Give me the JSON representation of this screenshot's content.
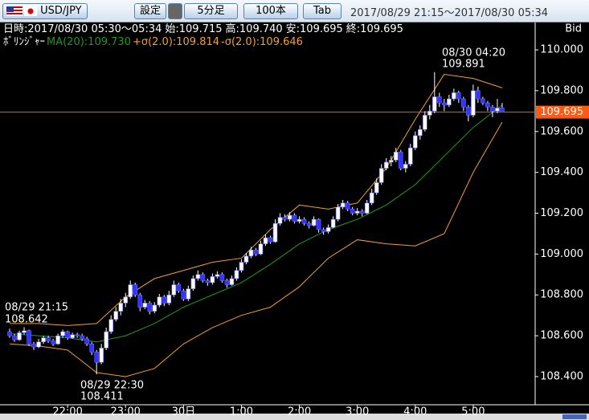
{
  "toolbar": {
    "pair": "USD/JPY",
    "buttons": [
      "設定",
      "5分足",
      "100本",
      "Tab"
    ],
    "range": "2017/08/29 21:15～2017/08/30 05:34"
  },
  "chart_data": {
    "type": "candlestick",
    "info": [
      "日時:2017/08/30 05:30～05:34",
      "始:109.715",
      "高:109.740",
      "安:109.695",
      "終:109.695"
    ],
    "indicator": "ﾎﾞﾘﾝｼﾞｬｰ",
    "axis_label": "Bid",
    "up_color": "#ffffff",
    "down_color": "#3333ff",
    "wick_color": "#ffffff",
    "ohlc": [
      [
        108.62,
        108.635,
        108.59,
        108.6
      ],
      [
        108.6,
        108.61,
        108.57,
        108.58
      ],
      [
        108.58,
        108.625,
        108.575,
        108.615
      ],
      [
        108.615,
        108.642,
        108.605,
        108.625
      ],
      [
        108.625,
        108.63,
        108.55,
        108.56
      ],
      [
        108.56,
        108.57,
        108.53,
        108.545
      ],
      [
        108.545,
        108.585,
        108.54,
        108.57
      ],
      [
        108.57,
        108.6,
        108.56,
        108.59
      ],
      [
        108.59,
        108.6,
        108.565,
        108.575
      ],
      [
        108.575,
        108.585,
        108.55,
        108.56
      ],
      [
        108.56,
        108.61,
        108.555,
        108.6
      ],
      [
        108.6,
        108.63,
        108.59,
        108.62
      ],
      [
        108.62,
        108.625,
        108.58,
        108.59
      ],
      [
        108.59,
        108.615,
        108.585,
        108.605
      ],
      [
        108.605,
        108.615,
        108.59,
        108.6
      ],
      [
        108.6,
        108.61,
        108.575,
        108.585
      ],
      [
        108.585,
        108.595,
        108.55,
        108.56
      ],
      [
        108.56,
        108.57,
        108.505,
        108.52
      ],
      [
        108.52,
        108.53,
        108.411,
        108.47
      ],
      [
        108.47,
        108.56,
        108.46,
        108.54
      ],
      [
        108.54,
        108.64,
        108.53,
        108.62
      ],
      [
        108.62,
        108.7,
        108.61,
        108.68
      ],
      [
        108.68,
        108.74,
        108.67,
        108.72
      ],
      [
        108.72,
        108.78,
        108.7,
        108.76
      ],
      [
        108.76,
        108.81,
        108.74,
        108.79
      ],
      [
        108.79,
        108.87,
        108.78,
        108.85
      ],
      [
        108.85,
        108.86,
        108.79,
        108.8
      ],
      [
        108.8,
        108.81,
        108.72,
        108.74
      ],
      [
        108.74,
        108.775,
        108.73,
        108.76
      ],
      [
        108.76,
        108.77,
        108.705,
        108.72
      ],
      [
        108.72,
        108.765,
        108.71,
        108.75
      ],
      [
        108.75,
        108.805,
        108.74,
        108.79
      ],
      [
        108.79,
        108.8,
        108.745,
        108.76
      ],
      [
        108.76,
        108.82,
        108.75,
        108.8
      ],
      [
        108.8,
        108.87,
        108.79,
        108.85
      ],
      [
        108.85,
        108.86,
        108.81,
        108.82
      ],
      [
        108.82,
        108.83,
        108.77,
        108.78
      ],
      [
        108.78,
        108.845,
        108.77,
        108.83
      ],
      [
        108.83,
        108.895,
        108.82,
        108.88
      ],
      [
        108.88,
        108.92,
        108.87,
        108.9
      ],
      [
        108.9,
        108.91,
        108.86,
        108.87
      ],
      [
        108.87,
        108.88,
        108.845,
        108.86
      ],
      [
        108.86,
        108.905,
        108.85,
        108.89
      ],
      [
        108.89,
        108.915,
        108.88,
        108.9
      ],
      [
        108.9,
        108.91,
        108.86,
        108.87
      ],
      [
        108.87,
        108.88,
        108.835,
        108.85
      ],
      [
        108.85,
        108.895,
        108.845,
        108.88
      ],
      [
        108.88,
        108.935,
        108.87,
        108.92
      ],
      [
        108.92,
        108.975,
        108.91,
        108.96
      ],
      [
        108.96,
        109.005,
        108.95,
        108.99
      ],
      [
        108.99,
        109.035,
        108.98,
        109.02
      ],
      [
        109.02,
        109.03,
        108.99,
        109.0
      ],
      [
        109.0,
        109.065,
        108.995,
        109.05
      ],
      [
        109.05,
        109.095,
        109.04,
        109.08
      ],
      [
        109.08,
        109.09,
        109.05,
        109.06
      ],
      [
        109.06,
        109.17,
        109.055,
        109.15
      ],
      [
        109.15,
        109.2,
        109.14,
        109.18
      ],
      [
        109.18,
        109.195,
        109.16,
        109.17
      ],
      [
        109.17,
        109.205,
        109.16,
        109.19
      ],
      [
        109.19,
        109.2,
        109.15,
        109.16
      ],
      [
        109.16,
        109.185,
        109.15,
        109.17
      ],
      [
        109.17,
        109.18,
        109.14,
        109.15
      ],
      [
        109.15,
        109.16,
        109.125,
        109.14
      ],
      [
        109.14,
        109.185,
        109.135,
        109.17
      ],
      [
        109.17,
        109.175,
        109.105,
        109.12
      ],
      [
        109.12,
        109.13,
        109.095,
        109.11
      ],
      [
        109.11,
        109.145,
        109.1,
        109.13
      ],
      [
        109.13,
        109.185,
        109.125,
        109.17
      ],
      [
        109.17,
        109.245,
        109.16,
        109.23
      ],
      [
        109.23,
        109.265,
        109.22,
        109.25
      ],
      [
        109.25,
        109.26,
        109.21,
        109.22
      ],
      [
        109.22,
        109.23,
        109.19,
        109.2
      ],
      [
        109.2,
        109.225,
        109.19,
        109.21
      ],
      [
        109.21,
        109.22,
        109.185,
        109.2
      ],
      [
        109.2,
        109.265,
        109.195,
        109.25
      ],
      [
        109.25,
        109.32,
        109.24,
        109.3
      ],
      [
        109.3,
        109.37,
        109.29,
        109.35
      ],
      [
        109.35,
        109.44,
        109.34,
        109.42
      ],
      [
        109.42,
        109.47,
        109.41,
        109.45
      ],
      [
        109.45,
        109.48,
        109.43,
        109.46
      ],
      [
        109.46,
        109.52,
        109.45,
        109.5
      ],
      [
        109.5,
        109.51,
        109.41,
        109.42
      ],
      [
        109.42,
        109.455,
        109.4,
        109.44
      ],
      [
        109.44,
        109.54,
        109.43,
        109.52
      ],
      [
        109.52,
        109.6,
        109.51,
        109.58
      ],
      [
        109.58,
        109.63,
        109.56,
        109.61
      ],
      [
        109.61,
        109.7,
        109.6,
        109.68
      ],
      [
        109.68,
        109.73,
        109.66,
        109.7
      ],
      [
        109.7,
        109.891,
        109.69,
        109.77
      ],
      [
        109.77,
        109.79,
        109.72,
        109.74
      ],
      [
        109.74,
        109.76,
        109.7,
        109.73
      ],
      [
        109.73,
        109.78,
        109.72,
        109.76
      ],
      [
        109.76,
        109.81,
        109.75,
        109.79
      ],
      [
        109.79,
        109.8,
        109.74,
        109.76
      ],
      [
        109.76,
        109.77,
        109.7,
        109.72
      ],
      [
        109.72,
        109.73,
        109.65,
        109.68
      ],
      [
        109.68,
        109.83,
        109.67,
        109.8
      ],
      [
        109.8,
        109.82,
        109.74,
        109.76
      ],
      [
        109.76,
        109.77,
        109.73,
        109.74
      ],
      [
        109.74,
        109.75,
        109.7,
        109.72
      ],
      [
        109.72,
        109.73,
        109.67,
        109.7
      ],
      [
        109.7,
        109.76,
        109.69,
        109.715
      ],
      [
        109.715,
        109.74,
        109.695,
        109.695
      ]
    ],
    "bands": {
      "x": [
        0,
        6,
        12,
        18,
        24,
        30,
        36,
        42,
        48,
        54,
        60,
        66,
        72,
        78,
        84,
        90,
        96,
        102
      ],
      "series": [
        {
          "name": "MA(20):109.730",
          "color": "#1f9a1f",
          "values": [
            108.61,
            108.6,
            108.59,
            108.57,
            108.6,
            108.66,
            108.74,
            108.8,
            108.86,
            108.95,
            109.05,
            109.12,
            109.17,
            109.24,
            109.34,
            109.48,
            109.62,
            109.73
          ]
        },
        {
          "name": "+σ(2.0):109.814",
          "color": "#f0a030",
          "values": [
            108.66,
            108.66,
            108.65,
            108.66,
            108.79,
            108.88,
            108.92,
            108.96,
            108.98,
            109.12,
            109.24,
            109.22,
            109.25,
            109.42,
            109.66,
            109.88,
            109.86,
            109.814
          ]
        },
        {
          "name": "-σ(2.0):109.646",
          "color": "#f0a030",
          "values": [
            108.56,
            108.55,
            108.53,
            108.42,
            108.4,
            108.44,
            108.56,
            108.64,
            108.7,
            108.74,
            108.84,
            108.98,
            109.07,
            109.05,
            109.04,
            109.1,
            109.4,
            109.646
          ]
        }
      ]
    },
    "current_price": {
      "value": 109.695,
      "label": "109.695",
      "color": "#ff5a10"
    },
    "annotations": [
      {
        "time": "08/29 21:15",
        "price": "108.642"
      },
      {
        "time": "08/29 22:30",
        "price": "108.411"
      },
      {
        "time": "08/30 04:20",
        "price": "109.891"
      }
    ],
    "xlim": [
      -1.5,
      108.5
    ],
    "xticks": [
      {
        "value": 12,
        "label": "22:00"
      },
      {
        "value": 24,
        "label": "23:00"
      },
      {
        "value": 36,
        "label": "30日"
      },
      {
        "value": 48,
        "label": "1:00"
      },
      {
        "value": 60,
        "label": "2:00"
      },
      {
        "value": 72,
        "label": "3:00"
      },
      {
        "value": 84,
        "label": "4:00"
      },
      {
        "value": 96,
        "label": "5:00"
      }
    ],
    "ylim": [
      108.278,
      110.126
    ],
    "yticks": [
      {
        "value": 108.4,
        "label": "108.400"
      },
      {
        "value": 108.6,
        "label": "108.600"
      },
      {
        "value": 108.8,
        "label": "108.800"
      },
      {
        "value": 109,
        "label": "109.000"
      },
      {
        "value": 109.2,
        "label": "109.200"
      },
      {
        "value": 109.4,
        "label": "109.400"
      },
      {
        "value": 109.6,
        "label": "109.600"
      },
      {
        "value": 109.8,
        "label": "109.800"
      },
      {
        "value": 110,
        "label": "110.000"
      }
    ]
  }
}
